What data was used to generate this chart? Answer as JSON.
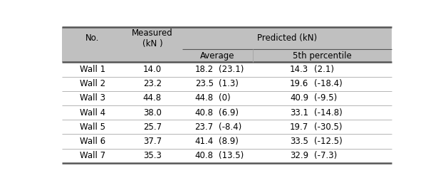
{
  "col_no": [
    "Wall 1",
    "Wall 2",
    "Wall 3",
    "Wall 4",
    "Wall 5",
    "Wall 6",
    "Wall 7"
  ],
  "col_measured": [
    "14.0",
    "23.2",
    "44.8",
    "38.0",
    "25.7",
    "37.7",
    "35.3"
  ],
  "col_avg_val": [
    "18.2",
    "23.5",
    "44.8",
    "40.8",
    "23.7",
    "41.4",
    "40.8"
  ],
  "col_avg_pct": [
    "(23.1)",
    "(1.3)",
    "(0)",
    "(6.9)",
    "(-8.4)",
    "(8.9)",
    "(13.5)"
  ],
  "col_5th_val": [
    "14.3",
    "19.6",
    "40.9",
    "33.1",
    "19.7",
    "33.5",
    "32.9"
  ],
  "col_5th_pct": [
    "(2.1)",
    "(-18.4)",
    "(-9.5)",
    "(-14.8)",
    "(-30.5)",
    "(-12.5)",
    "(-7.3)"
  ],
  "header_bg": "#c0c0c0",
  "row_bg": "#ffffff",
  "line_color_thick": "#555555",
  "line_color_thin": "#aaaaaa",
  "font_size": 8.5,
  "figwidth": 6.22,
  "figheight": 2.64,
  "dpi": 100
}
